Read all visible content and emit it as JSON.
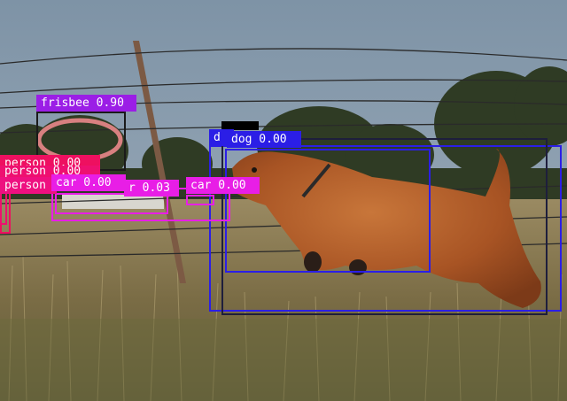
{
  "image": {
    "description_icon": "dog-photo",
    "colors": {
      "sky": "#8a9db0",
      "field": "#8b7a52",
      "dog": "#b3602a"
    }
  },
  "detections": [
    {
      "id": "frisbee",
      "label": "frisbee",
      "score": "0.90",
      "color": "#9b1ee6"
    },
    {
      "id": "dog-inner",
      "label": "dog",
      "score": "0.00",
      "color": "#2b1ee6"
    },
    {
      "id": "dog-outer",
      "label": "dog",
      "score": "0.00",
      "color": "#2b1ee6"
    },
    {
      "id": "dog-big",
      "label": "dog",
      "score": "",
      "color": "#1a1a40"
    },
    {
      "id": "person-a",
      "label": "person",
      "score": "0.00",
      "color": "#ee1060"
    },
    {
      "id": "person-b",
      "label": "person",
      "score": "",
      "color": "#ee1070"
    },
    {
      "id": "person-c",
      "label": "person",
      "score": "",
      "color": "#ee1080"
    },
    {
      "id": "car-a",
      "label": "car",
      "score": "0.00",
      "color": "#e81ee6"
    },
    {
      "id": "car-b",
      "label": "car",
      "score": "0.03",
      "color": "#e81ee6"
    },
    {
      "id": "car-c",
      "label": "car",
      "score": "0.00",
      "color": "#e81ee6"
    }
  ],
  "labels": {
    "frisbee": "frisbee 0.90",
    "dog_outer": "dog 0.00",
    "dog_partial": "d",
    "person_a": "person 0.00",
    "person_b": "person 0.00",
    "person_c": "person",
    "car_a": "car 0.00",
    "car_b": "r 0.03",
    "car_c": "car 0.00"
  }
}
